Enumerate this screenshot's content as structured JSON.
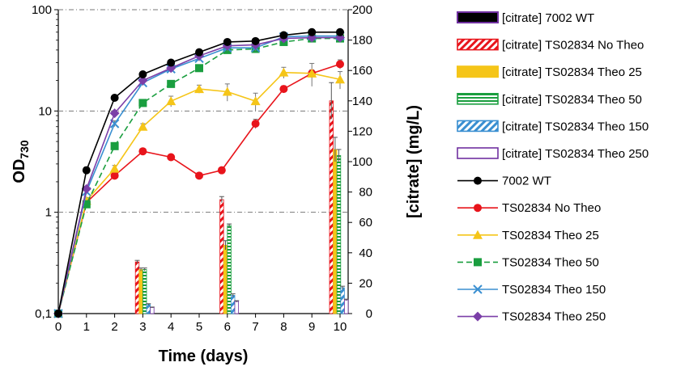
{
  "chart_data": {
    "type": "line+bar",
    "title": "",
    "xlabel": "Time (days)",
    "ylabel_left": {
      "main": "OD",
      "sub": "730"
    },
    "ylabel_right": "[citrate] (mg/L)",
    "x_ticks": [
      "0",
      "1",
      "2",
      "3",
      "4",
      "5",
      "6",
      "7",
      "8",
      "9",
      "10"
    ],
    "y_left_scale": "log",
    "y_left_lim": [
      0.1,
      100
    ],
    "y_left_ticks": [
      {
        "value": 0.1,
        "label": "0,1"
      },
      {
        "value": 1,
        "label": "1"
      },
      {
        "value": 10,
        "label": "10"
      },
      {
        "value": 100,
        "label": "100"
      }
    ],
    "y_right_lim": [
      0,
      200
    ],
    "y_right_ticks": [
      "0",
      "20",
      "40",
      "60",
      "80",
      "100",
      "120",
      "140",
      "160",
      "180",
      "200"
    ],
    "line_series": [
      {
        "name": "7002 WT",
        "color": "#000000",
        "marker": "circle",
        "dash": "solid",
        "x": [
          0,
          1,
          2,
          3,
          4,
          5,
          6,
          7,
          8,
          9,
          10
        ],
        "y": [
          0.1,
          2.6,
          13.5,
          23,
          30,
          38,
          48,
          49,
          56,
          60,
          60
        ],
        "err": [
          0,
          0.2,
          0.6,
          1.5,
          2,
          2,
          3,
          2,
          3,
          4,
          3
        ]
      },
      {
        "name": "TS02834 No Theo",
        "color": "#e8141b",
        "marker": "circle",
        "dash": "solid",
        "x": [
          0,
          1,
          2,
          3,
          4,
          5,
          5.8,
          7,
          8,
          9,
          10
        ],
        "y": [
          0.1,
          1.25,
          2.3,
          4.0,
          3.5,
          2.3,
          2.6,
          7.5,
          16.5,
          23.5,
          29
        ],
        "err": [
          0,
          0.1,
          0.15,
          0.25,
          0.2,
          0.15,
          0.15,
          0.8,
          1.2,
          2,
          3
        ]
      },
      {
        "name": "TS02834 Theo 25",
        "color": "#f5c518",
        "marker": "triangle",
        "dash": "solid",
        "x": [
          0,
          1,
          2,
          3,
          4,
          5,
          6,
          7,
          8,
          9,
          10
        ],
        "y": [
          0.1,
          1.3,
          2.7,
          7.0,
          12.5,
          16.5,
          15.5,
          12.5,
          24,
          23.5,
          20.5
        ],
        "err": [
          0,
          0.1,
          0.2,
          0.5,
          1.5,
          1.5,
          3,
          2.5,
          3,
          6,
          4
        ]
      },
      {
        "name": "TS02834 Theo 50",
        "color": "#1a9e3f",
        "marker": "square",
        "dash": "dash",
        "x": [
          0,
          1,
          2,
          3,
          4,
          5,
          6,
          7,
          8,
          9,
          10
        ],
        "y": [
          0.1,
          1.2,
          4.5,
          12,
          18.5,
          26.5,
          40,
          41,
          48,
          52,
          52
        ],
        "err": [
          0,
          0.1,
          0.3,
          0.8,
          1.2,
          2,
          2.5,
          3,
          4,
          4,
          4
        ]
      },
      {
        "name": "TS02834 Theo 150",
        "color": "#3a8fd1",
        "marker": "x",
        "dash": "solid",
        "x": [
          0,
          1,
          2,
          3,
          4,
          5,
          6,
          7,
          8,
          9,
          10
        ],
        "y": [
          0.1,
          1.6,
          7.5,
          19,
          26,
          33,
          42,
          42,
          54,
          55,
          55
        ],
        "err": [
          0,
          0.1,
          0.5,
          1.2,
          1.5,
          2,
          3,
          3,
          4,
          4,
          4
        ]
      },
      {
        "name": "TS02834 Theo 250",
        "color": "#7b3fa8",
        "marker": "diamond",
        "dash": "solid",
        "x": [
          0,
          1,
          2,
          3,
          4,
          5,
          6,
          7,
          8,
          9,
          10
        ],
        "y": [
          0.1,
          1.7,
          9.5,
          20,
          26.5,
          35,
          44,
          45,
          52,
          53,
          53
        ],
        "err": [
          0,
          0.1,
          0.6,
          1.2,
          1.5,
          2,
          3,
          3,
          4,
          4,
          4
        ]
      }
    ],
    "bar_series": [
      {
        "name": "[citrate] 7002 WT",
        "fill": "#000000",
        "outline": "#7030a0",
        "pattern": "solid",
        "days": [
          3,
          6,
          10
        ],
        "values": [
          0,
          0,
          0
        ],
        "err": [
          0,
          0,
          0
        ]
      },
      {
        "name": "[citrate] TS02834 No Theo",
        "fill": "#e8141b",
        "outline": "#e8141b",
        "pattern": "diag",
        "days": [
          3,
          6,
          10
        ],
        "values": [
          34,
          75,
          140
        ],
        "err": [
          1,
          2,
          12
        ]
      },
      {
        "name": "[citrate] TS02834 Theo 25",
        "fill": "#f5c518",
        "outline": "#f5c518",
        "pattern": "solid",
        "days": [
          3,
          6,
          10
        ],
        "values": [
          29,
          45,
          108
        ],
        "err": [
          1,
          3,
          8
        ]
      },
      {
        "name": "[citrate] TS02834 Theo 50",
        "fill": "#1a9e3f",
        "outline": "#1a9e3f",
        "pattern": "hstripe",
        "days": [
          3,
          6,
          10
        ],
        "values": [
          29,
          58,
          104
        ],
        "err": [
          1,
          1,
          4
        ]
      },
      {
        "name": "[citrate] TS02834 Theo 150",
        "fill": "#3a8fd1",
        "outline": "#3a8fd1",
        "pattern": "diag",
        "days": [
          3,
          6,
          10
        ],
        "values": [
          6,
          12,
          17
        ],
        "err": [
          0.5,
          1,
          1
        ]
      },
      {
        "name": "[citrate] TS02834 Theo 250",
        "fill": "#ffffff",
        "outline": "#7030a0",
        "pattern": "hollow",
        "days": [
          3,
          6,
          10
        ],
        "values": [
          4,
          8,
          9
        ],
        "err": [
          0.3,
          0.5,
          0.5
        ]
      }
    ],
    "legend": [
      {
        "label": "[citrate] 7002 WT",
        "kind": "bar",
        "ref": 0
      },
      {
        "label": "[citrate] TS02834 No Theo",
        "kind": "bar",
        "ref": 1
      },
      {
        "label": "[citrate] TS02834 Theo 25",
        "kind": "bar",
        "ref": 2
      },
      {
        "label": "[citrate] TS02834 Theo 50",
        "kind": "bar",
        "ref": 3
      },
      {
        "label": "[citrate] TS02834 Theo 150",
        "kind": "bar",
        "ref": 4
      },
      {
        "label": "[citrate] TS02834 Theo 250",
        "kind": "bar",
        "ref": 5
      },
      {
        "label": "7002 WT",
        "kind": "line",
        "ref": 0
      },
      {
        "label": "TS02834 No Theo",
        "kind": "line",
        "ref": 1
      },
      {
        "label": "TS02834 Theo 25",
        "kind": "line",
        "ref": 2
      },
      {
        "label": "TS02834 Theo 50",
        "kind": "line",
        "ref": 3
      },
      {
        "label": "TS02834 Theo 150",
        "kind": "line",
        "ref": 4
      },
      {
        "label": "TS02834 Theo 250",
        "kind": "line",
        "ref": 5
      }
    ],
    "legend_position": "right",
    "gridlines": "horizontal dash-dot at left-axis decades"
  }
}
